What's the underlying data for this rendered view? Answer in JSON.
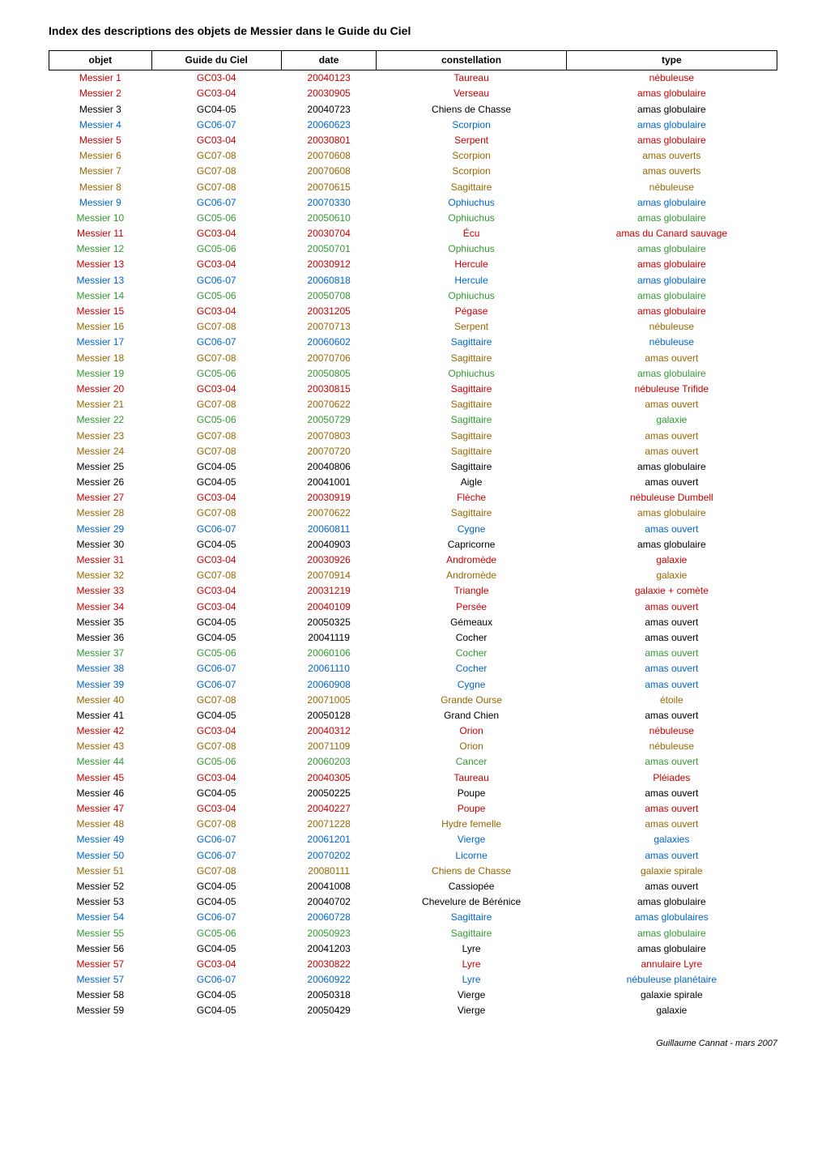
{
  "title": "Index des descriptions des objets de Messier dans le Guide du Ciel",
  "footer": "Guillaume Cannat - mars 2007",
  "colors": {
    "black": "#000000",
    "red": "#cc0000",
    "blue": "#0066cc",
    "green": "#339933",
    "brown": "#996600"
  },
  "columns": [
    "objet",
    "Guide du Ciel",
    "date",
    "constellation",
    "type"
  ],
  "rows": [
    {
      "objet": "Messier 1",
      "gc": "GC03-04",
      "date": "20040123",
      "const": "Taureau",
      "type": "nébuleuse",
      "color": "red"
    },
    {
      "objet": "Messier 2",
      "gc": "GC03-04",
      "date": "20030905",
      "const": "Verseau",
      "type": "amas globulaire",
      "color": "red"
    },
    {
      "objet": "Messier 3",
      "gc": "GC04-05",
      "date": "20040723",
      "const": "Chiens de Chasse",
      "type": "amas globulaire",
      "color": "black"
    },
    {
      "objet": "Messier 4",
      "gc": "GC06-07",
      "date": "20060623",
      "const": "Scorpion",
      "type": "amas globulaire",
      "color": "blue"
    },
    {
      "objet": "Messier 5",
      "gc": "GC03-04",
      "date": "20030801",
      "const": "Serpent",
      "type": "amas globulaire",
      "color": "red"
    },
    {
      "objet": "Messier 6",
      "gc": "GC07-08",
      "date": "20070608",
      "const": "Scorpion",
      "type": "amas ouverts",
      "color": "brown"
    },
    {
      "objet": "Messier 7",
      "gc": "GC07-08",
      "date": "20070608",
      "const": "Scorpion",
      "type": "amas ouverts",
      "color": "brown"
    },
    {
      "objet": "Messier 8",
      "gc": "GC07-08",
      "date": "20070615",
      "const": "Sagittaire",
      "type": "nébuleuse",
      "color": "brown"
    },
    {
      "objet": "Messier 9",
      "gc": "GC06-07",
      "date": "20070330",
      "const": "Ophiuchus",
      "type": "amas globulaire",
      "color": "blue"
    },
    {
      "objet": "Messier 10",
      "gc": "GC05-06",
      "date": "20050610",
      "const": "Ophiuchus",
      "type": "amas globulaire",
      "color": "green"
    },
    {
      "objet": "Messier 11",
      "gc": "GC03-04",
      "date": "20030704",
      "const": "Écu",
      "type": "amas du Canard sauvage",
      "color": "red"
    },
    {
      "objet": "Messier 12",
      "gc": "GC05-06",
      "date": "20050701",
      "const": "Ophiuchus",
      "type": "amas globulaire",
      "color": "green"
    },
    {
      "objet": "Messier 13",
      "gc": "GC03-04",
      "date": "20030912",
      "const": "Hercule",
      "type": "amas globulaire",
      "color": "red"
    },
    {
      "objet": "Messier 13",
      "gc": "GC06-07",
      "date": "20060818",
      "const": "Hercule",
      "type": "amas globulaire",
      "color": "blue"
    },
    {
      "objet": "Messier 14",
      "gc": "GC05-06",
      "date": "20050708",
      "const": "Ophiuchus",
      "type": "amas globulaire",
      "color": "green"
    },
    {
      "objet": "Messier 15",
      "gc": "GC03-04",
      "date": "20031205",
      "const": "Pégase",
      "type": "amas globulaire",
      "color": "red"
    },
    {
      "objet": "Messier 16",
      "gc": "GC07-08",
      "date": "20070713",
      "const": "Serpent",
      "type": "nébuleuse",
      "color": "brown"
    },
    {
      "objet": "Messier 17",
      "gc": "GC06-07",
      "date": "20060602",
      "const": "Sagittaire",
      "type": "nébuleuse",
      "color": "blue"
    },
    {
      "objet": "Messier 18",
      "gc": "GC07-08",
      "date": "20070706",
      "const": "Sagittaire",
      "type": "amas ouvert",
      "color": "brown"
    },
    {
      "objet": "Messier 19",
      "gc": "GC05-06",
      "date": "20050805",
      "const": "Ophiuchus",
      "type": "amas globulaire",
      "color": "green"
    },
    {
      "objet": "Messier 20",
      "gc": "GC03-04",
      "date": "20030815",
      "const": "Sagittaire",
      "type": "nébuleuse Trifide",
      "color": "red"
    },
    {
      "objet": "Messier 21",
      "gc": "GC07-08",
      "date": "20070622",
      "const": "Sagittaire",
      "type": "amas ouvert",
      "color": "brown"
    },
    {
      "objet": "Messier 22",
      "gc": "GC05-06",
      "date": "20050729",
      "const": "Sagittaire",
      "type": "galaxie",
      "color": "green"
    },
    {
      "objet": "Messier 23",
      "gc": "GC07-08",
      "date": "20070803",
      "const": "Sagittaire",
      "type": "amas ouvert",
      "color": "brown"
    },
    {
      "objet": "Messier 24",
      "gc": "GC07-08",
      "date": "20070720",
      "const": "Sagittaire",
      "type": "amas ouvert",
      "color": "brown"
    },
    {
      "objet": "Messier 25",
      "gc": "GC04-05",
      "date": "20040806",
      "const": "Sagittaire",
      "type": "amas globulaire",
      "color": "black"
    },
    {
      "objet": "Messier 26",
      "gc": "GC04-05",
      "date": "20041001",
      "const": "Aigle",
      "type": "amas ouvert",
      "color": "black"
    },
    {
      "objet": "Messier 27",
      "gc": "GC03-04",
      "date": "20030919",
      "const": "Flèche",
      "type": "nébuleuse Dumbell",
      "color": "red"
    },
    {
      "objet": "Messier 28",
      "gc": "GC07-08",
      "date": "20070622",
      "const": "Sagittaire",
      "type": "amas globulaire",
      "color": "brown"
    },
    {
      "objet": "Messier 29",
      "gc": "GC06-07",
      "date": "20060811",
      "const": "Cygne",
      "type": "amas ouvert",
      "color": "blue"
    },
    {
      "objet": "Messier 30",
      "gc": "GC04-05",
      "date": "20040903",
      "const": "Capricorne",
      "type": "amas globulaire",
      "color": "black"
    },
    {
      "objet": "Messier 31",
      "gc": "GC03-04",
      "date": "20030926",
      "const": "Andromède",
      "type": "galaxie",
      "color": "red"
    },
    {
      "objet": "Messier 32",
      "gc": "GC07-08",
      "date": "20070914",
      "const": "Andromède",
      "type": "galaxie",
      "color": "brown"
    },
    {
      "objet": "Messier 33",
      "gc": "GC03-04",
      "date": "20031219",
      "const": "Triangle",
      "type": "galaxie + comète",
      "color": "red"
    },
    {
      "objet": "Messier 34",
      "gc": "GC03-04",
      "date": "20040109",
      "const": "Persée",
      "type": "amas ouvert",
      "color": "red"
    },
    {
      "objet": "Messier 35",
      "gc": "GC04-05",
      "date": "20050325",
      "const": "Gémeaux",
      "type": "amas ouvert",
      "color": "black"
    },
    {
      "objet": "Messier 36",
      "gc": "GC04-05",
      "date": "20041119",
      "const": "Cocher",
      "type": "amas ouvert",
      "color": "black"
    },
    {
      "objet": "Messier 37",
      "gc": "GC05-06",
      "date": "20060106",
      "const": "Cocher",
      "type": "amas ouvert",
      "color": "green"
    },
    {
      "objet": "Messier 38",
      "gc": "GC06-07",
      "date": "20061110",
      "const": "Cocher",
      "type": "amas ouvert",
      "color": "blue"
    },
    {
      "objet": "Messier 39",
      "gc": "GC06-07",
      "date": "20060908",
      "const": "Cygne",
      "type": "amas ouvert",
      "color": "blue"
    },
    {
      "objet": "Messier 40",
      "gc": "GC07-08",
      "date": "20071005",
      "const": "Grande Ourse",
      "type": "étoile",
      "color": "brown"
    },
    {
      "objet": "Messier 41",
      "gc": "GC04-05",
      "date": "20050128",
      "const": "Grand Chien",
      "type": "amas ouvert",
      "color": "black"
    },
    {
      "objet": "Messier 42",
      "gc": "GC03-04",
      "date": "20040312",
      "const": "Orion",
      "type": "nébuleuse",
      "color": "red"
    },
    {
      "objet": "Messier 43",
      "gc": "GC07-08",
      "date": "20071109",
      "const": "Orion",
      "type": "nébuleuse",
      "color": "brown"
    },
    {
      "objet": "Messier 44",
      "gc": "GC05-06",
      "date": "20060203",
      "const": "Cancer",
      "type": "amas ouvert",
      "color": "green"
    },
    {
      "objet": "Messier 45",
      "gc": "GC03-04",
      "date": "20040305",
      "const": "Taureau",
      "type": "Pléiades",
      "color": "red"
    },
    {
      "objet": "Messier 46",
      "gc": "GC04-05",
      "date": "20050225",
      "const": "Poupe",
      "type": "amas ouvert",
      "color": "black"
    },
    {
      "objet": "Messier 47",
      "gc": "GC03-04",
      "date": "20040227",
      "const": "Poupe",
      "type": "amas ouvert",
      "color": "red"
    },
    {
      "objet": "Messier 48",
      "gc": "GC07-08",
      "date": "20071228",
      "const": "Hydre femelle",
      "type": "amas ouvert",
      "color": "brown"
    },
    {
      "objet": "Messier 49",
      "gc": "GC06-07",
      "date": "20061201",
      "const": "Vierge",
      "type": "galaxies",
      "color": "blue"
    },
    {
      "objet": "Messier 50",
      "gc": "GC06-07",
      "date": "20070202",
      "const": "Licorne",
      "type": "amas ouvert",
      "color": "blue"
    },
    {
      "objet": "Messier 51",
      "gc": "GC07-08",
      "date": "20080111",
      "const": "Chiens de Chasse",
      "type": "galaxie spirale",
      "color": "brown"
    },
    {
      "objet": "Messier 52",
      "gc": "GC04-05",
      "date": "20041008",
      "const": "Cassiopée",
      "type": "amas ouvert",
      "color": "black"
    },
    {
      "objet": "Messier 53",
      "gc": "GC04-05",
      "date": "20040702",
      "const": "Chevelure de Bérénice",
      "type": "amas globulaire",
      "color": "black"
    },
    {
      "objet": "Messier 54",
      "gc": "GC06-07",
      "date": "20060728",
      "const": "Sagittaire",
      "type": "amas globulaires",
      "color": "blue"
    },
    {
      "objet": "Messier 55",
      "gc": "GC05-06",
      "date": "20050923",
      "const": "Sagittaire",
      "type": "amas globulaire",
      "color": "green"
    },
    {
      "objet": "Messier 56",
      "gc": "GC04-05",
      "date": "20041203",
      "const": "Lyre",
      "type": "amas globulaire",
      "color": "black"
    },
    {
      "objet": "Messier 57",
      "gc": "GC03-04",
      "date": "20030822",
      "const": "Lyre",
      "type": "annulaire Lyre",
      "color": "red"
    },
    {
      "objet": "Messier 57",
      "gc": "GC06-07",
      "date": "20060922",
      "const": "Lyre",
      "type": "nébuleuse planétaire",
      "color": "blue"
    },
    {
      "objet": "Messier 58",
      "gc": "GC04-05",
      "date": "20050318",
      "const": "Vierge",
      "type": "galaxie spirale",
      "color": "black"
    },
    {
      "objet": "Messier 59",
      "gc": "GC04-05",
      "date": "20050429",
      "const": "Vierge",
      "type": "galaxie",
      "color": "black"
    }
  ]
}
